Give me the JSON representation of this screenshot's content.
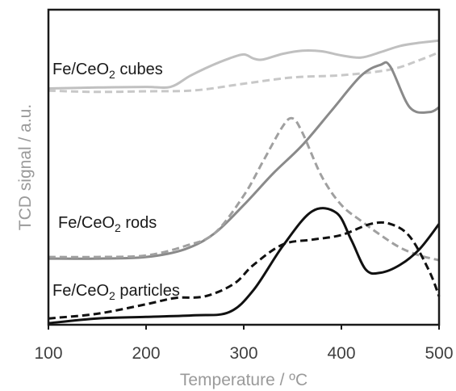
{
  "chart_data": {
    "type": "line",
    "title": "",
    "xlabel": "Temperature / ºC",
    "ylabel": "TCD signal / a.u.",
    "xlim": [
      100,
      500
    ],
    "ylim": [
      0,
      100
    ],
    "x_ticks": [
      "100",
      "200",
      "300",
      "400",
      "500"
    ],
    "y_ticks": [],
    "grid": false,
    "legend": "inline labels",
    "annotations": [
      {
        "base": "Fe/CeO",
        "sub": "2",
        "rest": " cubes",
        "color": "#1a1a1a"
      },
      {
        "base": "Fe/CeO",
        "sub": "2",
        "rest": " rods",
        "color": "#1a1a1a"
      },
      {
        "base": "Fe/CeO",
        "sub": "2",
        "rest": " particles",
        "color": "#1a1a1a"
      }
    ],
    "series": [
      {
        "color": "#c0c0c0",
        "dash": false,
        "x": [
          100,
          150,
          200,
          225,
          245,
          265,
          285,
          300,
          310,
          320,
          340,
          360,
          380,
          400,
          420,
          440,
          460,
          480,
          500
        ],
        "y": [
          75,
          75.3,
          75.5,
          75.5,
          79,
          82,
          84.5,
          85.8,
          84.5,
          84.2,
          86,
          87,
          86.8,
          85.5,
          84.8,
          86.5,
          88.5,
          89.5,
          90.2
        ]
      },
      {
        "color": "#c8c8c8",
        "dash": true,
        "x": [
          100,
          150,
          200,
          250,
          300,
          350,
          400,
          450,
          480,
          500
        ],
        "y": [
          74.3,
          73.9,
          74.1,
          74.4,
          76.5,
          78.5,
          79.2,
          81,
          84,
          86.5
        ]
      },
      {
        "color": "#8a8a8a",
        "dash": false,
        "x": [
          100,
          150,
          200,
          240,
          270,
          300,
          330,
          360,
          390,
          420,
          440,
          450,
          470,
          490,
          500
        ],
        "y": [
          21,
          21,
          21.5,
          24,
          29,
          38,
          48,
          57,
          68,
          79,
          82.5,
          82,
          69,
          67.5,
          69
        ]
      },
      {
        "color": "#a0a0a0",
        "dash": true,
        "x": [
          100,
          150,
          200,
          240,
          270,
          300,
          320,
          340,
          350,
          360,
          380,
          400,
          420,
          440,
          460,
          480,
          500
        ],
        "y": [
          21.5,
          21.5,
          22,
          25,
          29,
          41,
          52,
          63,
          65.5,
          61,
          47,
          38,
          33,
          28.5,
          24.5,
          22,
          20.5
        ]
      },
      {
        "color": "#111111",
        "dash": false,
        "x": [
          100,
          150,
          200,
          250,
          285,
          310,
          340,
          370,
          395,
          410,
          425,
          440,
          460,
          480,
          500
        ],
        "y": [
          0.5,
          2,
          2.5,
          3,
          4,
          11,
          25,
          36,
          35.5,
          27,
          17.5,
          16.5,
          19,
          24,
          32
        ]
      },
      {
        "color": "#111111",
        "dash": true,
        "x": [
          100,
          150,
          200,
          230,
          260,
          290,
          310,
          340,
          370,
          400,
          430,
          450,
          470,
          490,
          500
        ],
        "y": [
          2,
          3.5,
          6.5,
          8.5,
          9,
          13,
          19,
          25.5,
          27,
          28.5,
          32,
          32,
          28,
          17,
          9
        ]
      }
    ]
  }
}
